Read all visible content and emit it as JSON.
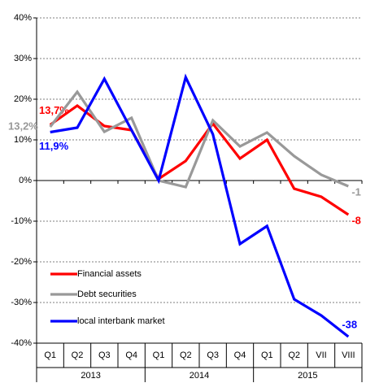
{
  "chart_data": {
    "type": "line",
    "categories": [
      "Q1",
      "Q2",
      "Q3",
      "Q4",
      "Q1",
      "Q2",
      "Q3",
      "Q4",
      "Q1",
      "Q2",
      "VII",
      "VIII"
    ],
    "x_groups": [
      "2013",
      "2014",
      "2015"
    ],
    "ylim": [
      -40,
      40
    ],
    "yticks": [
      {
        "value": -40,
        "label": "-40%"
      },
      {
        "value": -30,
        "label": "-30%"
      },
      {
        "value": -20,
        "label": "-20%"
      },
      {
        "value": -10,
        "label": "-10%"
      },
      {
        "value": 0,
        "label": "0%"
      },
      {
        "value": 10,
        "label": "10%"
      },
      {
        "value": 20,
        "label": "20%"
      },
      {
        "value": 30,
        "label": "30%"
      },
      {
        "value": 40,
        "label": "40%"
      }
    ],
    "grid": true,
    "legend": "lower left",
    "series": [
      {
        "name": "Financial assets",
        "color": "#ff0000",
        "values": [
          13.7,
          18.4,
          13.4,
          12.4,
          0.4,
          4.8,
          14.0,
          5.4,
          10.0,
          -2.0,
          -4.0,
          -8.4
        ],
        "value_labels": [
          "13,7%",
          null,
          null,
          null,
          null,
          null,
          null,
          null,
          null,
          null,
          null,
          "-8"
        ]
      },
      {
        "name": "Debt securities",
        "color": "#999999",
        "values": [
          13.2,
          21.8,
          12.0,
          15.4,
          0.0,
          -1.6,
          14.8,
          8.4,
          11.8,
          6.0,
          1.4,
          -1.4
        ],
        "value_labels": [
          "13,2%",
          null,
          null,
          null,
          null,
          null,
          null,
          null,
          null,
          null,
          null,
          "-1"
        ]
      },
      {
        "name": "local interbank market",
        "color": "#0000ff",
        "values": [
          11.9,
          13.0,
          25.0,
          12.4,
          0.0,
          25.4,
          11.4,
          -15.6,
          -11.2,
          -29.2,
          -33.2,
          -38.4
        ],
        "value_labels": [
          "11,9%",
          null,
          null,
          null,
          null,
          null,
          null,
          null,
          null,
          null,
          null,
          "-38"
        ]
      }
    ]
  }
}
